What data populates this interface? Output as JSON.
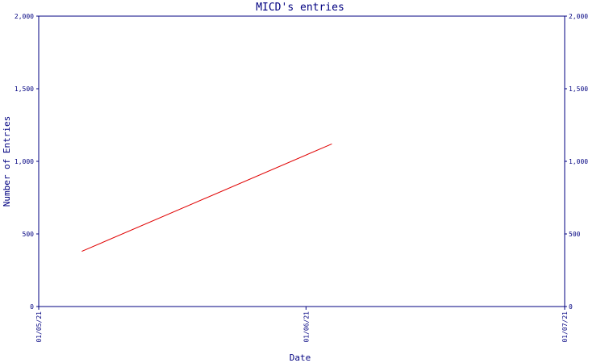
{
  "chart_data": {
    "type": "line",
    "title": "MICD's entries",
    "xlabel": "Date",
    "ylabel": "Number of Entries",
    "x_ticks": [
      "01/05/21",
      "01/06/21",
      "01/07/21"
    ],
    "y_ticks": [
      "0",
      "500",
      "1,000",
      "1,500",
      "2,000"
    ],
    "y2_ticks": [
      "0",
      "500",
      "1,000",
      "1,500",
      "2,000"
    ],
    "xlim": [
      "2021-05-01",
      "2021-07-01"
    ],
    "ylim": [
      0,
      2000
    ],
    "grid": false,
    "series": [
      {
        "color": "#e00000",
        "points": [
          {
            "x": "2021-05-06",
            "y": 380
          },
          {
            "x": "2021-06-04",
            "y": 1120
          }
        ]
      }
    ]
  }
}
